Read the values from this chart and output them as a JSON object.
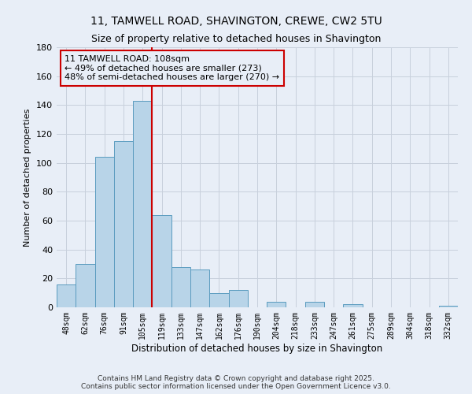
{
  "title": "11, TAMWELL ROAD, SHAVINGTON, CREWE, CW2 5TU",
  "subtitle": "Size of property relative to detached houses in Shavington",
  "xlabel": "Distribution of detached houses by size in Shavington",
  "ylabel": "Number of detached properties",
  "bar_labels": [
    "48sqm",
    "62sqm",
    "76sqm",
    "91sqm",
    "105sqm",
    "119sqm",
    "133sqm",
    "147sqm",
    "162sqm",
    "176sqm",
    "190sqm",
    "204sqm",
    "218sqm",
    "233sqm",
    "247sqm",
    "261sqm",
    "275sqm",
    "289sqm",
    "304sqm",
    "318sqm",
    "332sqm"
  ],
  "bar_values": [
    16,
    30,
    104,
    115,
    143,
    64,
    28,
    26,
    10,
    12,
    0,
    4,
    0,
    4,
    0,
    2,
    0,
    0,
    0,
    0,
    1
  ],
  "bar_color": "#b8d4e8",
  "bar_edgecolor": "#5a9bbf",
  "vline_x": 4.5,
  "vline_color": "#cc0000",
  "annotation_text": "11 TAMWELL ROAD: 108sqm\n← 49% of detached houses are smaller (273)\n48% of semi-detached houses are larger (270) →",
  "annotation_box_edgecolor": "#cc0000",
  "ylim": [
    0,
    180
  ],
  "yticks": [
    0,
    20,
    40,
    60,
    80,
    100,
    120,
    140,
    160,
    180
  ],
  "background_color": "#e8eef7",
  "footnote": "Contains HM Land Registry data © Crown copyright and database right 2025.\nContains public sector information licensed under the Open Government Licence v3.0.",
  "title_fontsize": 10,
  "subtitle_fontsize": 9,
  "annotation_fontsize": 8,
  "grid_color": "#c8d0dc"
}
